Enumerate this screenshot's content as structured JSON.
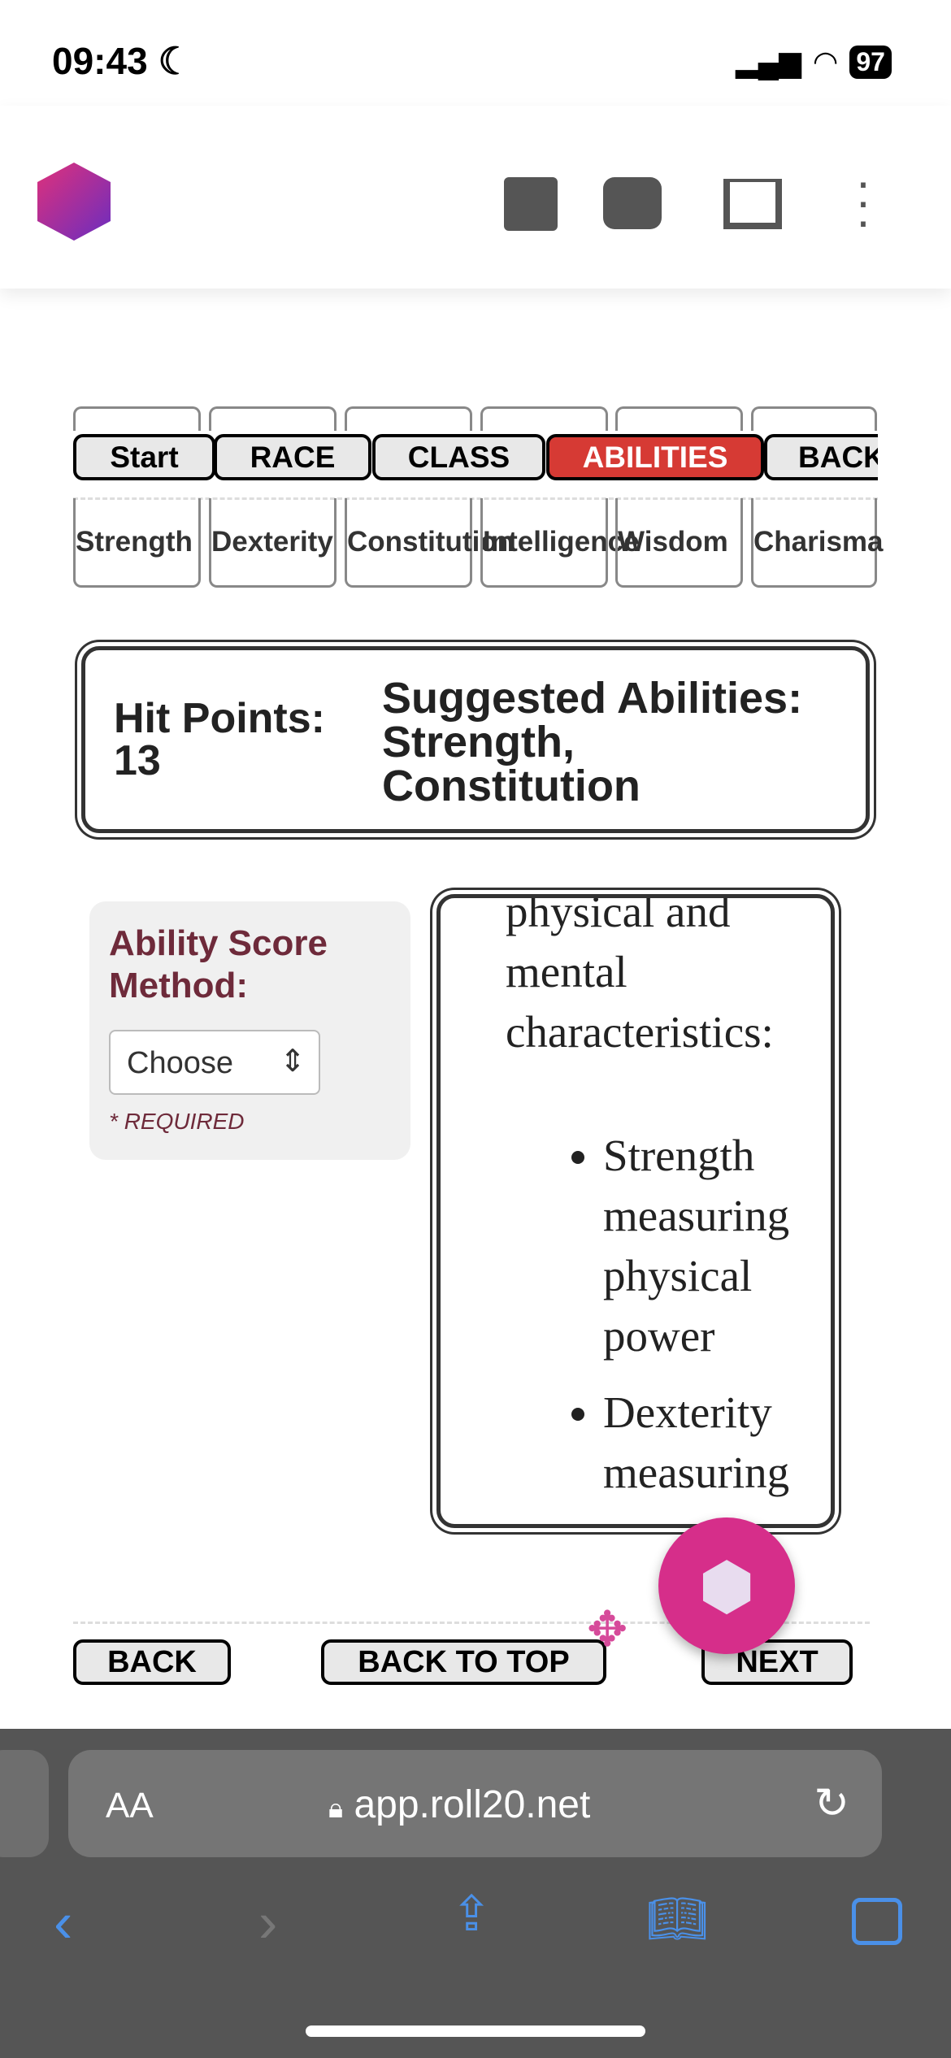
{
  "status": {
    "time": "09:43",
    "battery": "97"
  },
  "tabs": [
    {
      "label": "Start"
    },
    {
      "label": "RACE"
    },
    {
      "label": "CLASS"
    },
    {
      "label": "ABILITIES",
      "active": true
    },
    {
      "label": "BACK"
    }
  ],
  "abilities": [
    "Strength",
    "Dexterity",
    "Constitution",
    "Intelligence",
    "Wisdom",
    "Charisma"
  ],
  "summary": {
    "hp_label": "Hit Points:",
    "hp_value": "13",
    "suggested_label": "Suggested Abilities:",
    "suggested_value": "Strength, Constitution"
  },
  "method": {
    "label": "Ability Score Method:",
    "select_value": "Choose",
    "required": "REQUIRED"
  },
  "description": {
    "intro": "physical and mental characteristics:",
    "items": [
      "Strength measuring physical power",
      "Dexterity measuring"
    ]
  },
  "footer": {
    "back": "BACK",
    "top": "BACK TO TOP",
    "next": "NEXT"
  },
  "browser": {
    "aa": "AA",
    "url": "app.roll20.net"
  },
  "colors": {
    "accent": "#d63a34",
    "fab": "#d62e8a",
    "label": "#6e2a3a"
  }
}
